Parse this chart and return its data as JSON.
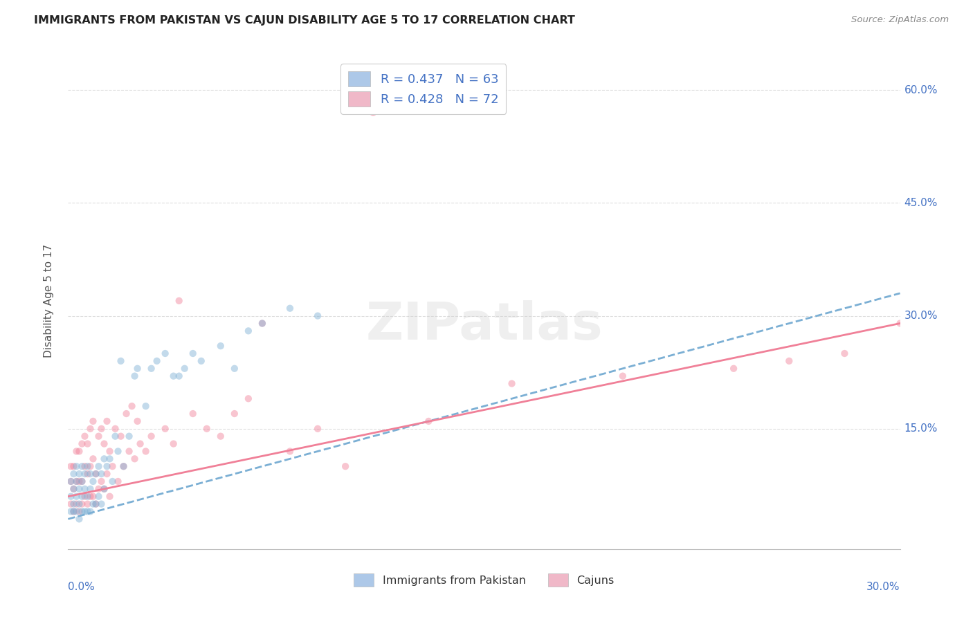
{
  "title": "IMMIGRANTS FROM PAKISTAN VS CAJUN DISABILITY AGE 5 TO 17 CORRELATION CHART",
  "source": "Source: ZipAtlas.com",
  "ylabel": "Disability Age 5 to 17",
  "ytick_vals": [
    0.15,
    0.3,
    0.45,
    0.6
  ],
  "ytick_labels": [
    "15.0%",
    "30.0%",
    "45.0%",
    "60.0%"
  ],
  "xlim": [
    0.0,
    0.3
  ],
  "ylim": [
    -0.01,
    0.65
  ],
  "legend_R_entries": [
    {
      "label": "R = 0.437   N = 63",
      "color": "#adc8e8"
    },
    {
      "label": "R = 0.428   N = 72",
      "color": "#f0b8c8"
    }
  ],
  "watermark": "ZIPatlas",
  "pakistan_color": "#7bafd4",
  "cajun_color": "#f08098",
  "pakistan_scatter_x": [
    0.001,
    0.001,
    0.001,
    0.002,
    0.002,
    0.002,
    0.002,
    0.003,
    0.003,
    0.003,
    0.003,
    0.004,
    0.004,
    0.004,
    0.004,
    0.005,
    0.005,
    0.005,
    0.005,
    0.006,
    0.006,
    0.006,
    0.007,
    0.007,
    0.007,
    0.008,
    0.008,
    0.008,
    0.009,
    0.009,
    0.01,
    0.01,
    0.011,
    0.011,
    0.012,
    0.012,
    0.013,
    0.013,
    0.014,
    0.015,
    0.016,
    0.017,
    0.018,
    0.019,
    0.02,
    0.022,
    0.024,
    0.025,
    0.028,
    0.03,
    0.032,
    0.035,
    0.038,
    0.04,
    0.042,
    0.045,
    0.048,
    0.055,
    0.06,
    0.065,
    0.07,
    0.08,
    0.09
  ],
  "pakistan_scatter_y": [
    0.04,
    0.06,
    0.08,
    0.04,
    0.05,
    0.07,
    0.09,
    0.04,
    0.06,
    0.08,
    0.1,
    0.03,
    0.05,
    0.07,
    0.09,
    0.04,
    0.06,
    0.08,
    0.1,
    0.04,
    0.07,
    0.09,
    0.04,
    0.06,
    0.1,
    0.04,
    0.07,
    0.09,
    0.05,
    0.08,
    0.05,
    0.09,
    0.06,
    0.1,
    0.05,
    0.09,
    0.07,
    0.11,
    0.1,
    0.11,
    0.08,
    0.14,
    0.12,
    0.24,
    0.1,
    0.14,
    0.22,
    0.23,
    0.18,
    0.23,
    0.24,
    0.25,
    0.22,
    0.22,
    0.23,
    0.25,
    0.24,
    0.26,
    0.23,
    0.28,
    0.29,
    0.31,
    0.3
  ],
  "cajun_scatter_x": [
    0.001,
    0.001,
    0.001,
    0.002,
    0.002,
    0.002,
    0.003,
    0.003,
    0.003,
    0.004,
    0.004,
    0.004,
    0.005,
    0.005,
    0.005,
    0.006,
    0.006,
    0.006,
    0.007,
    0.007,
    0.007,
    0.008,
    0.008,
    0.008,
    0.009,
    0.009,
    0.009,
    0.01,
    0.01,
    0.011,
    0.011,
    0.012,
    0.012,
    0.013,
    0.013,
    0.014,
    0.014,
    0.015,
    0.015,
    0.016,
    0.017,
    0.018,
    0.019,
    0.02,
    0.021,
    0.022,
    0.023,
    0.024,
    0.025,
    0.026,
    0.028,
    0.03,
    0.035,
    0.038,
    0.04,
    0.045,
    0.05,
    0.055,
    0.06,
    0.065,
    0.07,
    0.08,
    0.09,
    0.1,
    0.11,
    0.13,
    0.16,
    0.2,
    0.24,
    0.26,
    0.28,
    0.3
  ],
  "cajun_scatter_y": [
    0.05,
    0.08,
    0.1,
    0.04,
    0.07,
    0.1,
    0.05,
    0.08,
    0.12,
    0.04,
    0.08,
    0.12,
    0.05,
    0.08,
    0.13,
    0.06,
    0.1,
    0.14,
    0.05,
    0.09,
    0.13,
    0.06,
    0.1,
    0.15,
    0.06,
    0.11,
    0.16,
    0.05,
    0.09,
    0.07,
    0.14,
    0.08,
    0.15,
    0.07,
    0.13,
    0.09,
    0.16,
    0.06,
    0.12,
    0.1,
    0.15,
    0.08,
    0.14,
    0.1,
    0.17,
    0.12,
    0.18,
    0.11,
    0.16,
    0.13,
    0.12,
    0.14,
    0.15,
    0.13,
    0.32,
    0.17,
    0.15,
    0.14,
    0.17,
    0.19,
    0.29,
    0.12,
    0.15,
    0.1,
    0.57,
    0.16,
    0.21,
    0.22,
    0.23,
    0.24,
    0.25,
    0.29
  ],
  "pakistan_trend_x": [
    0.0,
    0.3
  ],
  "pakistan_trend_y": [
    0.03,
    0.33
  ],
  "cajun_trend_x": [
    0.0,
    0.3
  ],
  "cajun_trend_y": [
    0.06,
    0.29
  ],
  "background_color": "#ffffff",
  "grid_color": "#dddddd",
  "title_color": "#222222",
  "axis_label_color": "#4472c4",
  "R_color": "#4472c4",
  "pakistan_trend_color": "#7bafd4",
  "cajun_trend_color": "#f08098"
}
